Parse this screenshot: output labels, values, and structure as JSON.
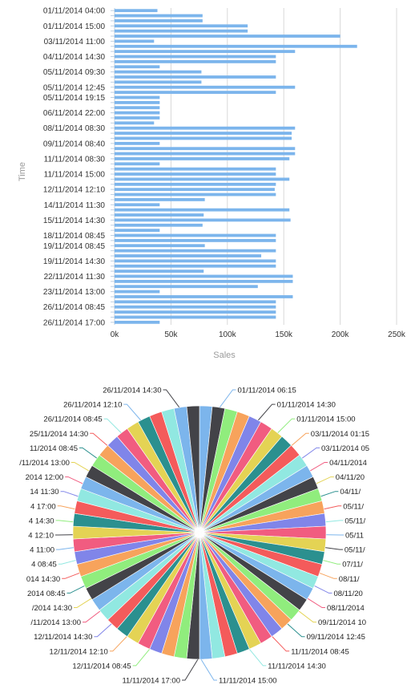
{
  "chart_data": [
    {
      "type": "bar",
      "orientation": "horizontal",
      "xlabel": "Sales",
      "ylabel": "Time",
      "xlim": [
        0,
        250000
      ],
      "x_ticks": [
        "0k",
        "50k",
        "100k",
        "150k",
        "200k",
        "250k"
      ],
      "grid": true,
      "bar_color": "#7cb5ec",
      "visible_category_labels": [
        "01/11/2014 04:00",
        "01/11/2014 15:00",
        "03/11/2014 11:00",
        "04/11/2014 14:30",
        "05/11/2014 09:30",
        "05/11/2014 12:45",
        "05/11/2014 19:15",
        "06/11/2014 22:00",
        "08/11/2014 08:30",
        "09/11/2014 08:40",
        "11/11/2014 08:30",
        "11/11/2014 15:00",
        "12/11/2014 12:10",
        "14/11/2014 11:30",
        "15/11/2014 14:30",
        "18/11/2014 08:45",
        "19/11/2014 08:45",
        "19/11/2014 14:30",
        "22/11/2014 11:30",
        "23/11/2014 13:00",
        "26/11/2014 08:45",
        "26/11/2014 17:00"
      ],
      "values": [
        38000,
        78000,
        78000,
        118000,
        118000,
        200000,
        35000,
        215000,
        160000,
        143000,
        143000,
        40000,
        77000,
        143000,
        77000,
        160000,
        143000,
        40000,
        40000,
        40000,
        40000,
        40000,
        35000,
        160000,
        157000,
        157000,
        40000,
        160000,
        160000,
        155000,
        40000,
        143000,
        143000,
        155000,
        143000,
        142000,
        143000,
        80000,
        40000,
        155000,
        79000,
        156000,
        78000,
        40000,
        143000,
        143000,
        80000,
        143000,
        130000,
        143000,
        143000,
        79000,
        158000,
        158000,
        127000,
        40000,
        158000,
        143000,
        143000,
        143000,
        143000,
        40000
      ]
    },
    {
      "type": "pie",
      "colors": [
        "#7cb5ec",
        "#434348",
        "#90ed7d",
        "#f7a35c",
        "#8085e9",
        "#f15c80",
        "#e4d354",
        "#2b908f",
        "#f45b5b",
        "#91e8e1"
      ],
      "slice_count": 62,
      "labels_right": [
        "01/11/2014 06:15",
        "01/11/2014 14:30",
        "01/11/2014 15:00",
        "03/11/2014 01:15",
        "03/11/2014 05",
        "04/11/2014",
        "04/11/20",
        "04/11/",
        "05/11/",
        "05/11/",
        "05/11",
        "05/11/",
        "07/11/",
        "08/11/",
        "08/11/20",
        "08/11/2014",
        "09/11/2014 10",
        "09/11/2014 12:45",
        "11/11/2014 08:45",
        "11/11/2014 14:30",
        "11/11/2014 15:00"
      ],
      "labels_left": [
        "26/11/2014 14:30",
        "26/11/2014 12:10",
        "26/11/2014 08:45",
        "25/11/2014 14:30",
        "11/2014 08:45",
        "/11/2014 13:00",
        "2014 12:00",
        "14 11:30",
        "4 17:00",
        "4 14:30",
        "4 12:10",
        "4 11:00",
        "4 08:45",
        "014 14:30",
        "2014 08:45",
        "/2014 14:30",
        "/11/2014 13:00",
        "12/11/2014 14:30",
        "12/11/2014 12:10",
        "12/11/2014 08:45",
        "11/11/2014 17:00"
      ]
    }
  ]
}
